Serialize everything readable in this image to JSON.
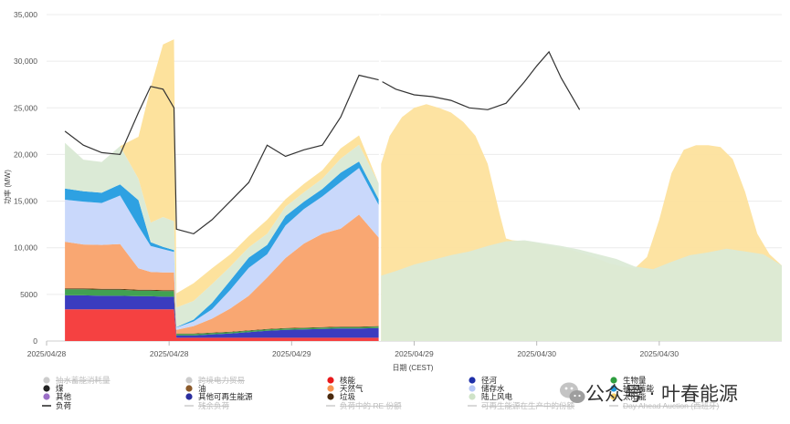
{
  "chart_data": {
    "type": "area",
    "xlabel": "日期 (CEST)",
    "ylabel": "功率 (MW)",
    "ylim": [
      0,
      35000
    ],
    "yticks": [
      0,
      5000,
      10000,
      15000,
      20000,
      25000,
      30000,
      35000
    ],
    "ytick_labels": [
      "0",
      "5000",
      "10,000",
      "15,000",
      "20,000",
      "25,000",
      "30,000",
      "35,000"
    ],
    "xlim": [
      0,
      60
    ],
    "xticks": [
      0,
      10,
      20,
      30,
      40,
      50
    ],
    "xtick_labels": [
      "2025/04/28",
      "2025/04/28",
      "2025/04/29",
      "2025/04/29",
      "2025/04/30",
      "2025/04/30"
    ],
    "grid": true,
    "legend_position": "bottom",
    "x": [
      1.5,
      3,
      4.5,
      6,
      7.5,
      8.5,
      9.5,
      10.4,
      10.6,
      12,
      13.5,
      15,
      16.5,
      18,
      19.5,
      21,
      22.5,
      24,
      25.5,
      27.1
    ],
    "series": [
      {
        "name": "核能",
        "color": "#f54141",
        "values": [
          3400,
          3400,
          3400,
          3400,
          3400,
          3400,
          3400,
          3400,
          350,
          350,
          350,
          350,
          350,
          350,
          350,
          350,
          350,
          350,
          350,
          350
        ]
      },
      {
        "name": "其他可再生能源",
        "color": "#3b3cbf",
        "values": [
          1500,
          1500,
          1450,
          1450,
          1400,
          1400,
          1350,
          1350,
          250,
          250,
          350,
          450,
          600,
          750,
          850,
          900,
          950,
          1000,
          1000,
          1050
        ]
      },
      {
        "name": "生物量",
        "color": "#41a152",
        "values": [
          650,
          650,
          650,
          650,
          600,
          600,
          600,
          600,
          150,
          150,
          150,
          150,
          150,
          150,
          150,
          150,
          150,
          150,
          150,
          150
        ]
      },
      {
        "name": "垃圾",
        "color": "#5e3a12",
        "values": [
          100,
          100,
          100,
          100,
          100,
          100,
          100,
          100,
          50,
          50,
          50,
          50,
          50,
          50,
          50,
          50,
          50,
          50,
          50,
          50
        ]
      },
      {
        "name": "天然气",
        "color": "#f9a772",
        "values": [
          5000,
          4700,
          4700,
          4800,
          2300,
          1900,
          1900,
          1900,
          400,
          800,
          1500,
          2500,
          3700,
          5500,
          7500,
          9000,
          10000,
          10500,
          12000,
          9500
        ]
      },
      {
        "name": "储存水",
        "color": "#c9d8fb",
        "values": [
          4500,
          4600,
          4500,
          5200,
          4500,
          2800,
          2500,
          2200,
          250,
          500,
          1000,
          2000,
          3000,
          2500,
          3500,
          3700,
          4000,
          5000,
          5000,
          3500
        ]
      },
      {
        "name": "抽水蓄能",
        "color": "#2ea1e2",
        "values": [
          1200,
          1100,
          1100,
          1200,
          2800,
          400,
          250,
          200,
          50,
          200,
          700,
          1000,
          1100,
          1000,
          1000,
          800,
          800,
          1000,
          700,
          600
        ]
      },
      {
        "name": "陆上风电",
        "color": "#dbead6",
        "values": [
          4900,
          3400,
          3300,
          4100,
          2300,
          2100,
          3200,
          3100,
          2100,
          2000,
          2000,
          1500,
          1100,
          1200,
          1000,
          1000,
          1100,
          1500,
          1800,
          1700
        ]
      },
      {
        "name": "太阳能",
        "color": "#fde29d",
        "values": [
          0,
          0,
          0,
          0,
          4500,
          14500,
          18500,
          19500,
          1500,
          1900,
          1700,
          1300,
          1200,
          1500,
          800,
          900,
          900,
          1100,
          1000,
          0
        ]
      },
      {
        "name": "负荷",
        "color": "#333333",
        "type": "line",
        "values": [
          22500,
          21000,
          20200,
          20000,
          24500,
          27300,
          27000,
          25000,
          12000,
          11500,
          13000,
          15000,
          17000,
          21000,
          19800,
          20500,
          21000,
          24000,
          28500,
          28000
        ]
      },
      {
        "name": "负荷 (ahead)",
        "color": "#333333",
        "type": "line",
        "x": [
          27.4,
          28.5,
          30,
          31.5,
          33,
          34.5,
          36,
          37.5,
          39,
          40,
          41,
          42,
          43.5
        ],
        "values": [
          27800,
          27000,
          26400,
          26200,
          25800,
          25000,
          24800,
          25500,
          27800,
          29500,
          31000,
          28200,
          24800
        ]
      },
      {
        "name": "Day Ahead Auction (西班牙)",
        "hidden": true
      },
      {
        "name": "陆上风电 (forecast)",
        "color": "#dbead6",
        "x": [
          27.3,
          28.5,
          30,
          31.5,
          33,
          34.5,
          36,
          37.5,
          39,
          40.5,
          42,
          43.5,
          45,
          46.5,
          48,
          49.5,
          51,
          52.5,
          54,
          55.5,
          57,
          58.5,
          60
        ],
        "values": [
          7000,
          7500,
          8200,
          8700,
          9200,
          9600,
          10200,
          10700,
          10800,
          10500,
          10200,
          9800,
          9300,
          8800,
          8000,
          7700,
          8500,
          9200,
          9500,
          9900,
          9600,
          9300,
          8100
        ]
      },
      {
        "name": "太阳能 (forecast)",
        "color": "#fde29d",
        "x": [
          27.3,
          28,
          29,
          30,
          31,
          32,
          33,
          34,
          35,
          36,
          37,
          37.5,
          38,
          39,
          40,
          41,
          42,
          43,
          44,
          45,
          46,
          47,
          48,
          49,
          50,
          51,
          52,
          53,
          54,
          55,
          56,
          57,
          58,
          59,
          60
        ],
        "values": [
          19000,
          22000,
          24000,
          25000,
          25400,
          25000,
          24500,
          23500,
          22000,
          19000,
          13500,
          11000,
          10800,
          10700,
          10500,
          10200,
          10000,
          9700,
          9300,
          8800,
          8300,
          8000,
          7800,
          9000,
          13000,
          18000,
          20500,
          21000,
          21000,
          20800,
          19500,
          16000,
          11500,
          9300,
          8100
        ]
      }
    ],
    "legend": [
      {
        "label": "抽水蓄能消耗量",
        "color": "#cccccc",
        "shape": "dot",
        "active": false
      },
      {
        "label": "跨境电力贸易",
        "color": "#cccccc",
        "shape": "dot",
        "active": false
      },
      {
        "label": "核能",
        "color": "#e8191c",
        "shape": "dot",
        "active": true
      },
      {
        "label": "径河",
        "color": "#1e2fa8",
        "shape": "dot",
        "active": true
      },
      {
        "label": "生物量",
        "color": "#2e9e3f",
        "shape": "dot",
        "active": true
      },
      {
        "label": "煤",
        "color": "#222222",
        "shape": "dot",
        "active": true
      },
      {
        "label": "油",
        "color": "#8b5a2b",
        "shape": "dot",
        "active": true
      },
      {
        "label": "天然气",
        "color": "#f79552",
        "shape": "dot",
        "active": true
      },
      {
        "label": "储存水",
        "color": "#b7c8f7",
        "shape": "dot",
        "active": true
      },
      {
        "label": "抽水蓄能",
        "color": "#1f9ae0",
        "shape": "dot",
        "active": true
      },
      {
        "label": "其他",
        "color": "#9b6fc7",
        "shape": "dot",
        "active": true
      },
      {
        "label": "其他可再生能源",
        "color": "#2b2e9e",
        "shape": "dot",
        "active": true
      },
      {
        "label": "垃圾",
        "color": "#4a2a0e",
        "shape": "dot",
        "active": true
      },
      {
        "label": "陆上风电",
        "color": "#cfe3c8",
        "shape": "dot",
        "active": true
      },
      {
        "label": "太阳能",
        "color": "#fbd36a",
        "shape": "dot",
        "active": true
      },
      {
        "label": "负荷",
        "color": "#222222",
        "shape": "line",
        "active": true
      },
      {
        "label": "残余负荷",
        "color": "#cccccc",
        "shape": "line",
        "active": false
      },
      {
        "label": "负荷中的 RE 份额",
        "color": "#cccccc",
        "shape": "line",
        "active": false
      },
      {
        "label": "可再生能源在生产中的份额",
        "color": "#cccccc",
        "shape": "line",
        "active": false
      },
      {
        "label": "Day Ahead Auction (西班牙)",
        "color": "#cccccc",
        "shape": "line",
        "active": false
      }
    ]
  },
  "watermark": {
    "text": "公众号 · 叶春能源",
    "icon": "wechat-icon"
  }
}
